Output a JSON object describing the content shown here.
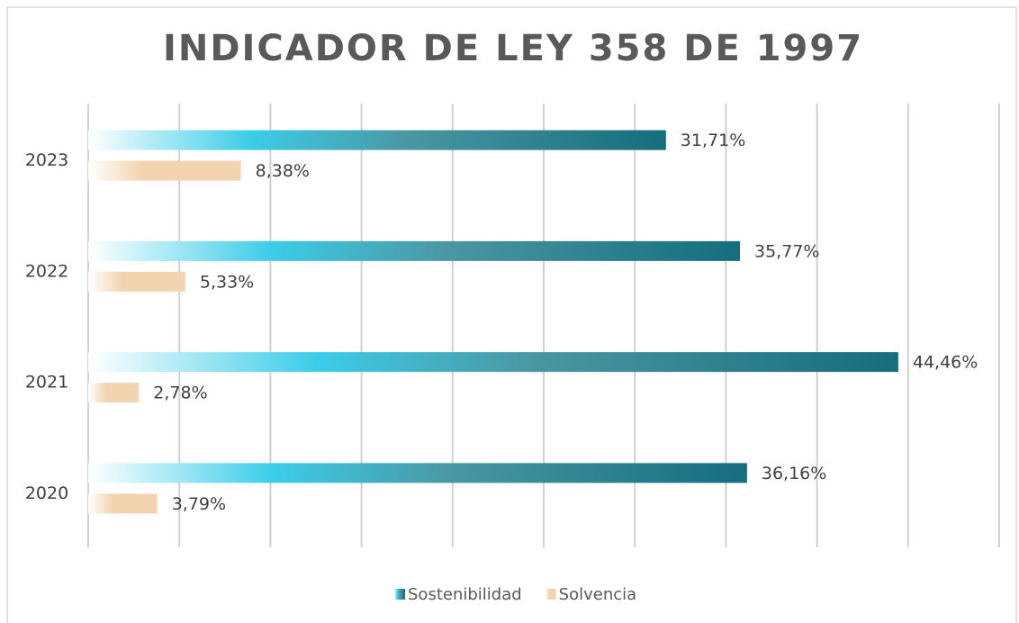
{
  "chart_data": {
    "type": "barh",
    "title": "INDICADOR DE LEY 358 DE 1997",
    "categories": [
      "2023",
      "2022",
      "2021",
      "2020"
    ],
    "series": [
      {
        "name": "Sostenibilidad",
        "color": "#156d7d",
        "values": [
          31.71,
          35.77,
          44.46,
          36.16
        ],
        "value_labels": [
          "31,71%",
          "35,77%",
          "44,46%",
          "36,16%"
        ]
      },
      {
        "name": "Solvencia",
        "color": "#f2d5b0",
        "values": [
          8.38,
          5.33,
          2.78,
          3.79
        ],
        "value_labels": [
          "8,38%",
          "5,33%",
          "2,78%",
          "3,79%"
        ]
      }
    ],
    "xlim": [
      0,
      50
    ],
    "xticks": [
      0,
      5,
      10,
      15,
      20,
      25,
      30,
      35,
      40,
      45,
      50
    ],
    "grid": true,
    "legend": "bottom"
  }
}
